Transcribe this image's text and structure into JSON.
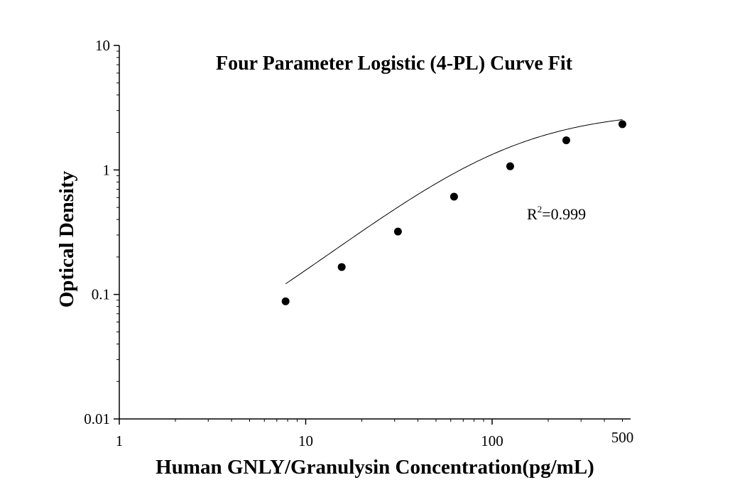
{
  "chart_data": {
    "type": "scatter",
    "title": "Four Parameter Logistic (4-PL) Curve Fit",
    "xlabel": "Human GNLY/Granulysin Concentration(pg/mL)",
    "ylabel": "Optical Density",
    "xscale": "log",
    "yscale": "log",
    "xlim": [
      1,
      500
    ],
    "ylim": [
      0.01,
      10
    ],
    "x_ticks": [
      {
        "value": 1,
        "label": "1"
      },
      {
        "value": 10,
        "label": "10"
      },
      {
        "value": 100,
        "label": "100"
      },
      {
        "value": 500,
        "label": "500"
      }
    ],
    "y_ticks": [
      {
        "value": 0.01,
        "label": "0.01"
      },
      {
        "value": 0.1,
        "label": "0.1"
      },
      {
        "value": 1,
        "label": "1"
      },
      {
        "value": 10,
        "label": "10"
      }
    ],
    "points": [
      {
        "x": 7.8,
        "y": 0.088
      },
      {
        "x": 15.6,
        "y": 0.166
      },
      {
        "x": 31.25,
        "y": 0.32
      },
      {
        "x": 62.5,
        "y": 0.61
      },
      {
        "x": 125,
        "y": 1.07
      },
      {
        "x": 250,
        "y": 1.73
      },
      {
        "x": 500,
        "y": 2.33
      }
    ],
    "fit": {
      "A": 0.0155,
      "B": 1.2,
      "C": 122.0,
      "D": 3.0
    },
    "annotation": {
      "base": "R",
      "sup": "2",
      "rest": "=0.999"
    },
    "colors": {
      "axis": "#000000",
      "points": "#000000",
      "curve": "#000000"
    }
  }
}
